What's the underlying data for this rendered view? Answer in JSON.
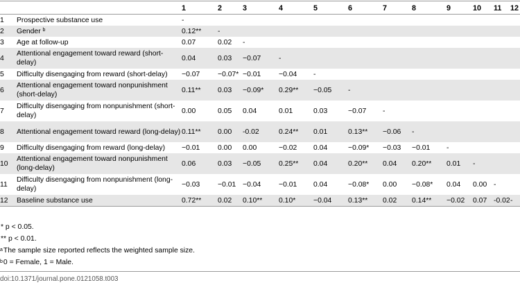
{
  "header": [
    "",
    "",
    "1",
    "2",
    "3",
    "4",
    "5",
    "6",
    "7",
    "8",
    "9",
    "10",
    "11",
    "12"
  ],
  "rows": [
    {
      "num": "1",
      "label": "Prospective substance use",
      "sup": "",
      "cells": [
        "-",
        "",
        "",
        "",
        "",
        "",
        "",
        "",
        "",
        "",
        "",
        ""
      ]
    },
    {
      "num": "2",
      "label": "Gender ",
      "sup": "b",
      "cells": [
        "0.12**",
        "-",
        "",
        "",
        "",
        "",
        "",
        "",
        "",
        "",
        "",
        ""
      ]
    },
    {
      "num": "3",
      "label": "Age at follow-up",
      "sup": "",
      "cells": [
        "0.07",
        "0.02",
        "-",
        "",
        "",
        "",
        "",
        "",
        "",
        "",
        "",
        ""
      ]
    },
    {
      "num": "4",
      "label": "Attentional engagement toward reward (short-delay)",
      "sup": "",
      "cells": [
        "0.04",
        "0.03",
        "−0.07",
        "-",
        "",
        "",
        "",
        "",
        "",
        "",
        "",
        ""
      ]
    },
    {
      "num": "5",
      "label": "Difficulty disengaging from reward (short-delay)",
      "sup": "",
      "cells": [
        "−0.07",
        "−0.07*",
        "−0.01",
        "−0.04",
        "-",
        "",
        "",
        "",
        "",
        "",
        "",
        ""
      ]
    },
    {
      "num": "6",
      "label": "Attentional engagement toward nonpunishment (short-delay)",
      "sup": "",
      "cells": [
        "0.11**",
        "0.03",
        "−0.09*",
        "0.29**",
        "−0.05",
        "-",
        "",
        "",
        "",
        "",
        "",
        ""
      ]
    },
    {
      "num": "7",
      "label": "Difficulty disengaging from nonpunishment (short-delay)",
      "sup": "",
      "cells": [
        "0.00",
        "0.05",
        "0.04",
        "0.01",
        "0.03",
        "−0.07",
        "-",
        "",
        "",
        "",
        "",
        ""
      ]
    },
    {
      "num": "8",
      "label": "Attentional engagement toward reward (long-delay)",
      "sup": "",
      "cells": [
        "0.11**",
        "0.00",
        "-0.02",
        "0.24**",
        "0.01",
        "0.13**",
        "−0.06",
        "-",
        "",
        "",
        "",
        ""
      ]
    },
    {
      "num": "9",
      "label": "Difficulty disengaging from reward (long-delay)",
      "sup": "",
      "cells": [
        "−0.01",
        "0.00",
        "0.00",
        "−0.02",
        "0.04",
        "−0.09*",
        "−0.03",
        "−0.01",
        "-",
        "",
        "",
        ""
      ]
    },
    {
      "num": "10",
      "label": "Attentional engagement toward nonpunishment (long-delay)",
      "sup": "",
      "cells": [
        "0.06",
        "0.03",
        "−0.05",
        "0.25**",
        "0.04",
        "0.20**",
        "0.04",
        "0.20**",
        "0.01",
        "-",
        "",
        ""
      ]
    },
    {
      "num": "11",
      "label": "Difficulty disengaging from nonpunishment (long-delay)",
      "sup": "",
      "cells": [
        "−0.03",
        "−0.01",
        "−0.04",
        "−0.01",
        "0.04",
        "−0.08*",
        "0.00",
        "−0.08*",
        "0.04",
        "0.00",
        "-",
        ""
      ]
    },
    {
      "num": "12",
      "label": "Baseline substance use",
      "sup": "",
      "cells": [
        "0.72**",
        "0.02",
        "0.10**",
        "0.10*",
        "−0.04",
        "0.13**",
        "0.02",
        "0.14**",
        "−0.02",
        "0.07",
        "-0.02",
        "-"
      ]
    }
  ],
  "notes": [
    {
      "sup": "",
      "text": "* p < 0.05."
    },
    {
      "sup": "",
      "text": "** p < 0.01."
    },
    {
      "sup": "a",
      "text": "The sample size reported reflects the weighted sample size."
    },
    {
      "sup": "b",
      "text": "0 = Female, 1 = Male."
    }
  ],
  "doi": "doi:10.1371/journal.pone.0121058.t003"
}
